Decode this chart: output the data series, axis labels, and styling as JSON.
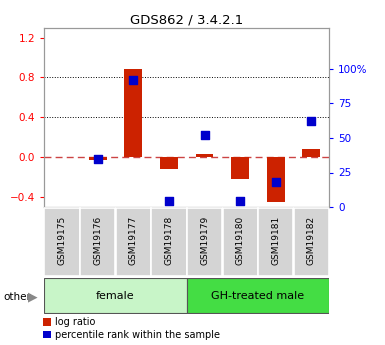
{
  "title": "GDS862 / 3.4.2.1",
  "samples": [
    "GSM19175",
    "GSM19176",
    "GSM19177",
    "GSM19178",
    "GSM19179",
    "GSM19180",
    "GSM19181",
    "GSM19182"
  ],
  "log_ratio": [
    0.0,
    -0.03,
    0.88,
    -0.12,
    0.03,
    -0.22,
    -0.45,
    0.08
  ],
  "percentile_vals": [
    null,
    35,
    92,
    4,
    52,
    4,
    18,
    62
  ],
  "groups": [
    {
      "label": "female",
      "start": 0,
      "end": 3,
      "color": "#c8f5c8"
    },
    {
      "label": "GH-treated male",
      "start": 4,
      "end": 7,
      "color": "#44dd44"
    }
  ],
  "left_ylim": [
    -0.5,
    1.3
  ],
  "right_ylim": [
    0,
    130
  ],
  "left_yticks": [
    -0.4,
    0.0,
    0.4,
    0.8,
    1.2
  ],
  "right_yticks": [
    0,
    25,
    50,
    75,
    100
  ],
  "right_yticklabels": [
    "0",
    "25",
    "50",
    "75",
    "100%"
  ],
  "bar_color": "#cc2200",
  "dot_color": "#0000cc",
  "zero_line_color": "#cc4444",
  "dotted_line_color": "#000000",
  "bg_color": "#ffffff",
  "bar_width": 0.5,
  "other_label": "other",
  "legend_log_ratio": "log ratio",
  "legend_percentile": "percentile rank within the sample"
}
